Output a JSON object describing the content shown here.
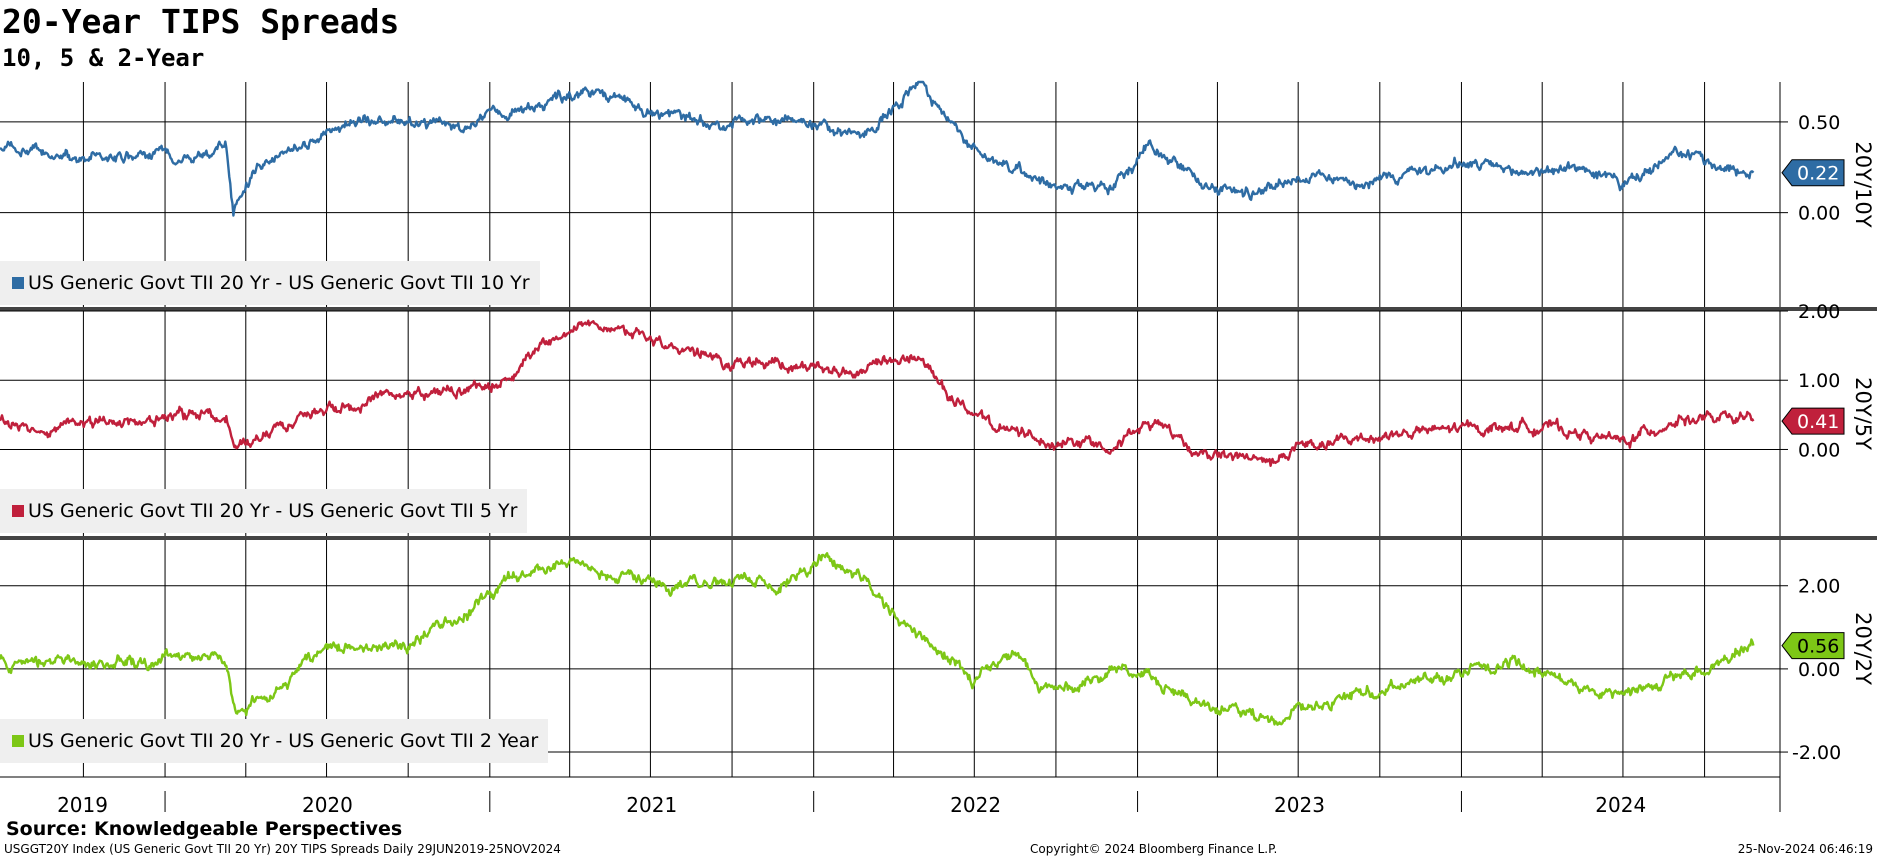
{
  "title": "20-Year TIPS Spreads",
  "subtitle": "10, 5 & 2-Year",
  "source": "Source: Knowledgeable Perspectives",
  "footer": {
    "left": "USGGT20Y Index (US Generic Govt TII 20 Yr) 20Y TIPS Spreads  Daily 29JUN2019-25NOV2024",
    "center": "Copyright© 2024 Bloomberg Finance L.P.",
    "right": "25-Nov-2024 06:46:19"
  },
  "chart_data": [
    {
      "type": "line",
      "axis_label": "20Y/10Y",
      "legend": "US Generic Govt TII 20 Yr - US Generic Govt TII 10 Yr",
      "color": "#2e6ca4",
      "last_value": "0.22",
      "y_ticks": [
        "0.50",
        "0.00"
      ],
      "ylim": [
        -0.52,
        0.72
      ],
      "x": [
        "2019-06-29",
        "2019-09-01",
        "2019-12-01",
        "2020-02-20",
        "2020-03-10",
        "2020-03-18",
        "2020-04-15",
        "2020-07-01",
        "2020-09-01",
        "2020-12-01",
        "2021-03-01",
        "2021-05-01",
        "2021-07-01",
        "2021-09-01",
        "2021-12-01",
        "2022-03-01",
        "2022-05-01",
        "2022-06-01",
        "2022-07-15",
        "2022-08-15",
        "2022-10-01",
        "2022-12-01",
        "2023-01-15",
        "2023-03-01",
        "2023-05-01",
        "2023-07-01",
        "2023-10-01",
        "2024-01-01",
        "2024-03-01",
        "2024-05-15",
        "2024-07-01",
        "2024-09-01",
        "2024-11-25"
      ],
      "values": [
        0.35,
        0.3,
        0.3,
        0.33,
        0.37,
        0.0,
        0.26,
        0.45,
        0.52,
        0.48,
        0.6,
        0.67,
        0.55,
        0.5,
        0.52,
        0.45,
        0.7,
        0.5,
        0.3,
        0.22,
        0.18,
        0.12,
        0.38,
        0.2,
        0.1,
        0.2,
        0.18,
        0.27,
        0.22,
        0.25,
        0.15,
        0.32,
        0.22
      ]
    },
    {
      "type": "line",
      "axis_label": "20Y/5Y",
      "legend": "US Generic Govt TII 20 Yr - US Generic Govt TII 5 Yr",
      "color": "#c0203c",
      "last_value": "0.41",
      "y_ticks": [
        "2.00",
        "1.00",
        "0.00"
      ],
      "ylim": [
        -1.25,
        2.0
      ],
      "x": [
        "2019-06-29",
        "2019-09-01",
        "2019-12-01",
        "2020-02-20",
        "2020-03-10",
        "2020-03-18",
        "2020-05-01",
        "2020-07-01",
        "2020-09-01",
        "2020-12-01",
        "2021-02-01",
        "2021-03-01",
        "2021-05-01",
        "2021-07-01",
        "2021-09-01",
        "2021-12-01",
        "2022-03-01",
        "2022-05-01",
        "2022-06-01",
        "2022-07-15",
        "2022-10-01",
        "2022-12-01",
        "2023-02-01",
        "2023-03-01",
        "2023-06-01",
        "2023-07-01",
        "2023-10-01",
        "2024-01-01",
        "2024-04-01",
        "2024-07-01",
        "2024-09-01",
        "2024-11-25"
      ],
      "values": [
        0.4,
        0.3,
        0.4,
        0.55,
        0.4,
        0.0,
        0.25,
        0.6,
        0.8,
        0.85,
        1.1,
        1.55,
        1.8,
        1.65,
        1.3,
        1.2,
        1.1,
        1.35,
        0.8,
        0.35,
        0.1,
        0.1,
        0.4,
        0.0,
        -0.2,
        0.0,
        0.2,
        0.3,
        0.35,
        0.1,
        0.45,
        0.41
      ]
    },
    {
      "type": "line",
      "axis_label": "20Y/2Y",
      "legend": "US Generic Govt TII 20 Yr - US Generic Govt TII 2 Year",
      "color": "#7dc716",
      "last_value": "0.56",
      "y_ticks": [
        "2.00",
        "0.00",
        "-2.00"
      ],
      "ylim": [
        -2.6,
        3.1
      ],
      "x": [
        "2019-06-29",
        "2019-09-01",
        "2019-12-01",
        "2020-02-20",
        "2020-03-10",
        "2020-03-20",
        "2020-05-01",
        "2020-07-01",
        "2020-10-01",
        "2020-12-01",
        "2021-02-01",
        "2021-04-01",
        "2021-07-01",
        "2021-09-01",
        "2021-12-01",
        "2022-01-15",
        "2022-03-01",
        "2022-05-01",
        "2022-07-01",
        "2022-08-15",
        "2022-10-01",
        "2022-12-15",
        "2023-03-01",
        "2023-06-01",
        "2023-09-01",
        "2023-12-01",
        "2024-03-01",
        "2024-06-01",
        "2024-08-01",
        "2024-10-01",
        "2024-11-25"
      ],
      "values": [
        0.2,
        0.1,
        0.2,
        0.3,
        0.2,
        -1.0,
        -0.6,
        0.5,
        0.6,
        1.3,
        2.2,
        2.5,
        2.1,
        2.1,
        2.1,
        2.7,
        2.1,
        0.8,
        -0.3,
        0.3,
        -0.6,
        0.1,
        -0.8,
        -1.3,
        -0.6,
        -0.2,
        0.2,
        -0.5,
        -0.5,
        0.0,
        0.56
      ]
    }
  ],
  "x_axis": {
    "year_labels": [
      "2019",
      "2020",
      "2021",
      "2022",
      "2023",
      "2024"
    ]
  }
}
